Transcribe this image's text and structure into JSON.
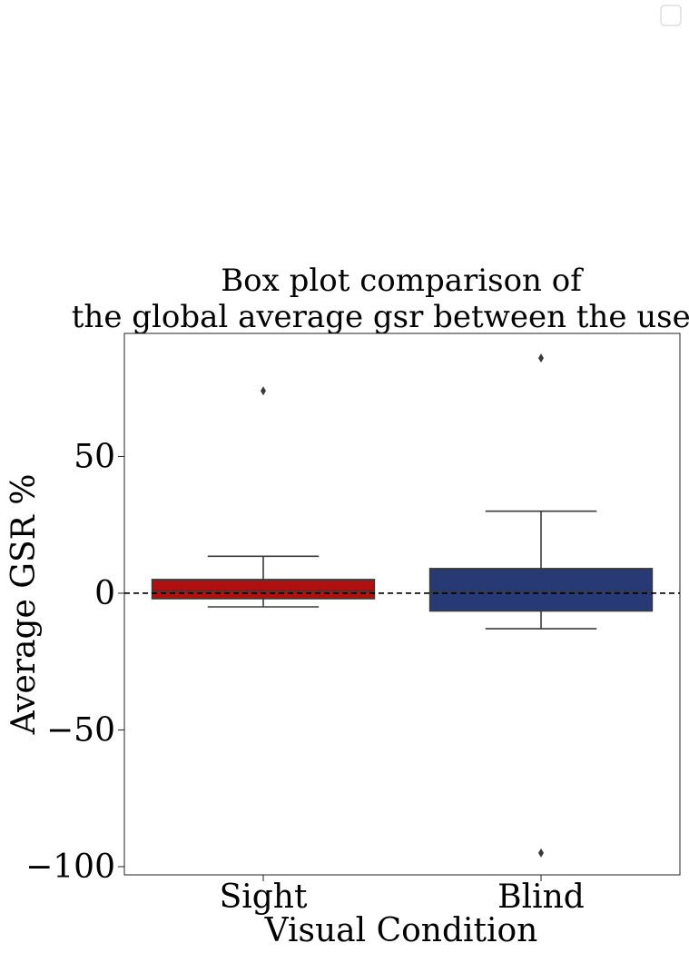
{
  "chart_data": {
    "type": "box",
    "title_lines": [
      "Box plot comparison of",
      "the global average gsr between the users."
    ],
    "xlabel": "Visual Condition",
    "ylabel": "Average GSR %",
    "categories": [
      "Sight",
      "Blind"
    ],
    "ylim": [
      -103,
      95
    ],
    "yticks": [
      -100,
      -50,
      0,
      50
    ],
    "ytick_labels": [
      "−100",
      "−50",
      "0",
      "50"
    ],
    "reference_line": {
      "y": 0,
      "style": "dashed"
    },
    "boxes": [
      {
        "name": "Sight",
        "whisker_low": -5,
        "q1": -2,
        "median": 1,
        "q3": 5,
        "whisker_high": 13.5,
        "outliers": [
          74
        ],
        "color": "#b01010"
      },
      {
        "name": "Blind",
        "whisker_low": -13,
        "q1": -6.5,
        "median": 1,
        "q3": 9,
        "whisker_high": 30,
        "outliers": [
          86,
          -95
        ],
        "color": "#273a76"
      }
    ],
    "legend": {
      "entries": [],
      "placement": "top-right"
    }
  }
}
